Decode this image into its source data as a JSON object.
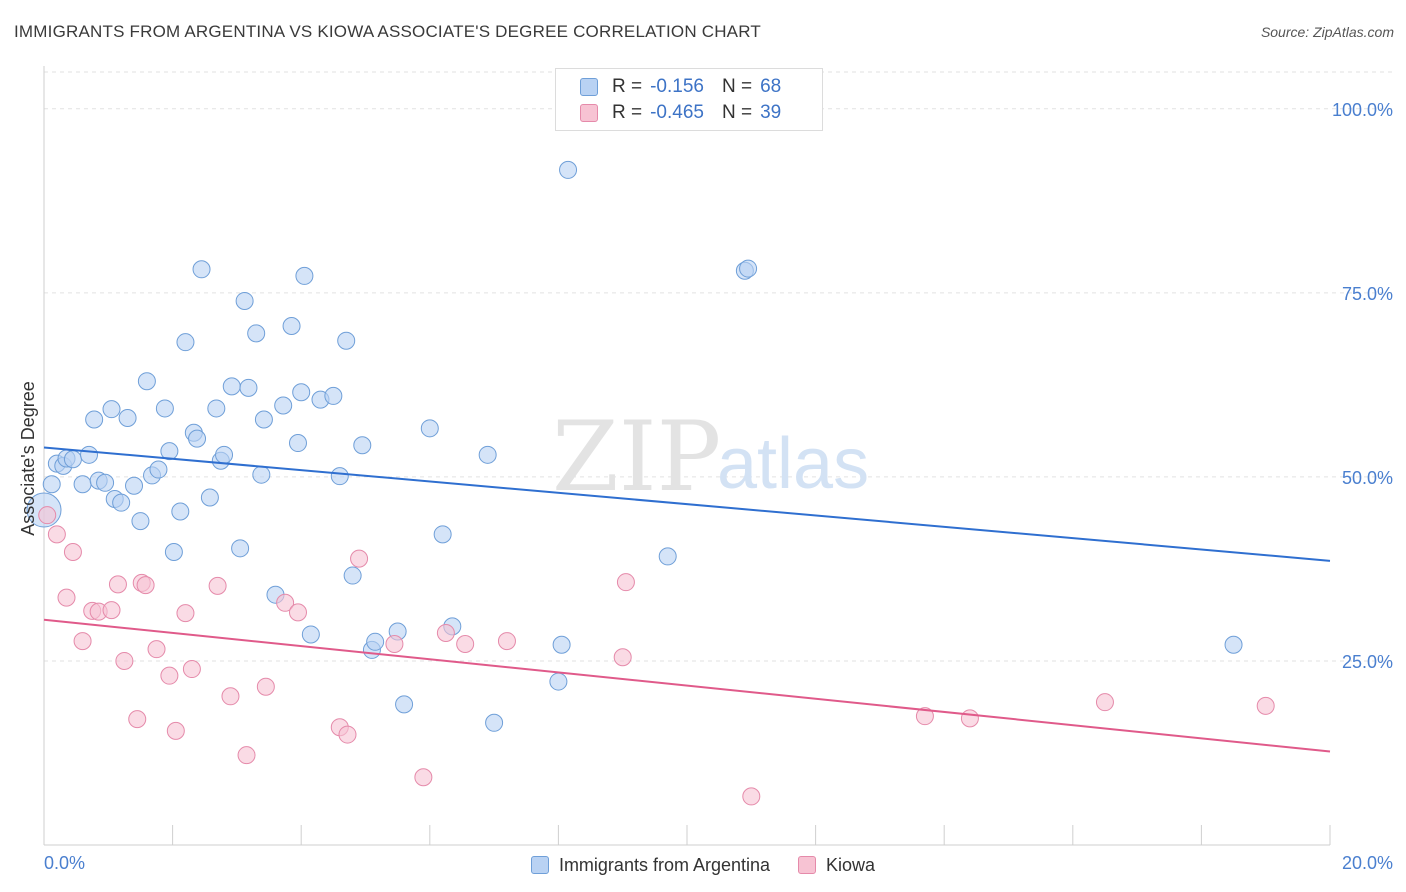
{
  "title": "IMMIGRANTS FROM ARGENTINA VS KIOWA ASSOCIATE'S DEGREE CORRELATION CHART",
  "source": "Source: ZipAtlas.com",
  "watermark": {
    "zip": "ZIP",
    "atlas": "atlas"
  },
  "legend": {
    "r_label": "R =",
    "n_label": "N =",
    "series": [
      {
        "r": "-0.156",
        "n": "68"
      },
      {
        "r": "-0.465",
        "n": "39"
      }
    ]
  },
  "chart_data": {
    "type": "scatter",
    "title": "IMMIGRANTS FROM ARGENTINA VS KIOWA ASSOCIATE'S DEGREE CORRELATION CHART",
    "xlabel": "",
    "ylabel": "Associate's Degree",
    "xlim": [
      0,
      20
    ],
    "ylim": [
      0,
      105
    ],
    "x_tick_labels": [
      "0.0%",
      "20.0%"
    ],
    "y_ticks": [
      25,
      50,
      75,
      100
    ],
    "y_tick_labels": [
      "25.0%",
      "50.0%",
      "75.0%",
      "100.0%"
    ],
    "grid": true,
    "legend_position": "top-center",
    "series": [
      {
        "name": "Immigrants from Argentina",
        "color": "#6f9fd8",
        "fill": "#b9d2f3",
        "trend": {
          "x": [
            0,
            20
          ],
          "y": [
            54.0,
            38.6
          ],
          "color": "#2f6fd0"
        },
        "points": [
          [
            0.0,
            45.5
          ],
          [
            0.12,
            49.0
          ],
          [
            0.2,
            51.8
          ],
          [
            0.3,
            51.5
          ],
          [
            0.35,
            52.5
          ],
          [
            0.45,
            52.4
          ],
          [
            0.6,
            49.0
          ],
          [
            0.7,
            53.0
          ],
          [
            0.78,
            57.8
          ],
          [
            0.85,
            49.5
          ],
          [
            0.95,
            49.2
          ],
          [
            1.05,
            59.2
          ],
          [
            1.1,
            47.0
          ],
          [
            1.2,
            46.5
          ],
          [
            1.3,
            58.0
          ],
          [
            1.4,
            48.8
          ],
          [
            1.5,
            44.0
          ],
          [
            1.6,
            63.0
          ],
          [
            1.68,
            50.2
          ],
          [
            1.78,
            51.0
          ],
          [
            1.88,
            59.3
          ],
          [
            1.95,
            53.5
          ],
          [
            2.02,
            39.8
          ],
          [
            2.12,
            45.3
          ],
          [
            2.2,
            68.3
          ],
          [
            2.33,
            56.0
          ],
          [
            2.38,
            55.2
          ],
          [
            2.45,
            78.2
          ],
          [
            2.58,
            47.2
          ],
          [
            2.68,
            59.3
          ],
          [
            2.75,
            52.2
          ],
          [
            2.8,
            53.0
          ],
          [
            2.92,
            62.3
          ],
          [
            3.05,
            40.3
          ],
          [
            3.12,
            73.9
          ],
          [
            3.18,
            62.1
          ],
          [
            3.3,
            69.5
          ],
          [
            3.38,
            50.3
          ],
          [
            3.42,
            57.8
          ],
          [
            3.6,
            34.0
          ],
          [
            3.72,
            59.7
          ],
          [
            3.85,
            70.5
          ],
          [
            3.95,
            54.6
          ],
          [
            4.0,
            61.5
          ],
          [
            4.05,
            77.3
          ],
          [
            4.15,
            28.6
          ],
          [
            4.3,
            60.5
          ],
          [
            4.5,
            61.0
          ],
          [
            4.6,
            50.1
          ],
          [
            4.7,
            68.5
          ],
          [
            4.8,
            36.6
          ],
          [
            4.95,
            54.3
          ],
          [
            5.1,
            26.5
          ],
          [
            5.15,
            27.6
          ],
          [
            5.5,
            29.0
          ],
          [
            5.6,
            19.1
          ],
          [
            6.0,
            56.6
          ],
          [
            6.2,
            42.2
          ],
          [
            6.35,
            29.7
          ],
          [
            6.9,
            53.0
          ],
          [
            7.0,
            16.6
          ],
          [
            8.0,
            22.2
          ],
          [
            8.05,
            27.2
          ],
          [
            8.15,
            91.7
          ],
          [
            9.7,
            39.2
          ],
          [
            10.9,
            78.0
          ],
          [
            10.95,
            78.3
          ],
          [
            18.5,
            27.2
          ]
        ]
      },
      {
        "name": "Kiowa",
        "color": "#e58aaa",
        "fill": "#f7c3d3",
        "trend": {
          "x": [
            0,
            20
          ],
          "y": [
            30.6,
            12.7
          ],
          "color": "#e05a8a"
        },
        "points": [
          [
            0.05,
            44.8
          ],
          [
            0.2,
            42.2
          ],
          [
            0.35,
            33.6
          ],
          [
            0.45,
            39.8
          ],
          [
            0.6,
            27.7
          ],
          [
            0.75,
            31.8
          ],
          [
            0.85,
            31.7
          ],
          [
            1.05,
            31.9
          ],
          [
            1.15,
            35.4
          ],
          [
            1.25,
            25.0
          ],
          [
            1.45,
            17.1
          ],
          [
            1.52,
            35.6
          ],
          [
            1.58,
            35.3
          ],
          [
            1.75,
            26.6
          ],
          [
            1.95,
            23.0
          ],
          [
            2.05,
            15.5
          ],
          [
            2.2,
            31.5
          ],
          [
            2.3,
            23.9
          ],
          [
            2.7,
            35.2
          ],
          [
            2.9,
            20.2
          ],
          [
            3.15,
            12.2
          ],
          [
            3.45,
            21.5
          ],
          [
            3.75,
            32.9
          ],
          [
            3.95,
            31.6
          ],
          [
            4.6,
            16.0
          ],
          [
            4.72,
            15.0
          ],
          [
            4.9,
            38.9
          ],
          [
            5.45,
            27.3
          ],
          [
            5.9,
            9.2
          ],
          [
            6.25,
            28.8
          ],
          [
            6.55,
            27.3
          ],
          [
            7.2,
            27.7
          ],
          [
            9.0,
            25.5
          ],
          [
            9.05,
            35.7
          ],
          [
            11.0,
            6.6
          ],
          [
            13.7,
            17.5
          ],
          [
            14.4,
            17.2
          ],
          [
            16.5,
            19.4
          ],
          [
            19.0,
            18.9
          ]
        ]
      }
    ]
  },
  "bottom_legend": [
    {
      "label": "Immigrants from Argentina"
    },
    {
      "label": "Kiowa"
    }
  ]
}
